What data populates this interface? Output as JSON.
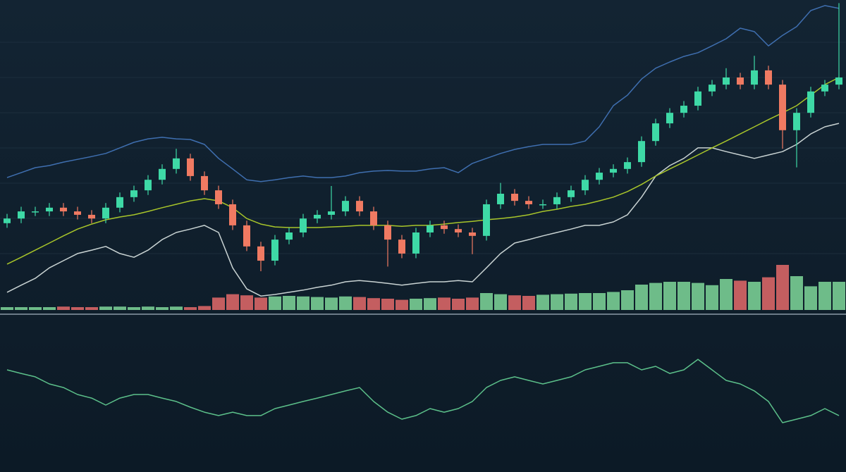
{
  "chart_data": [
    {
      "type": "candlestick",
      "up_color": "#3ed9a6",
      "down_color": "#f07a62",
      "ylim": [
        0,
        100
      ],
      "open": [
        28,
        29.5,
        31.8,
        31.8,
        33,
        31.8,
        30.7,
        29.5,
        33,
        36.4,
        38.6,
        42,
        45.5,
        48.9,
        43.2,
        38.6,
        34.1,
        27.3,
        20.5,
        15.9,
        22.7,
        25,
        29.5,
        30.7,
        31.8,
        35.2,
        31.8,
        27.3,
        22.7,
        18.2,
        25,
        27.3,
        26.1,
        25,
        23.9,
        34.1,
        37.5,
        35.2,
        34.1,
        34.1,
        36.4,
        38.6,
        42,
        44.3,
        45.5,
        47.7,
        54.5,
        60.2,
        63.6,
        65.9,
        70.5,
        72.7,
        75,
        72.7,
        77.3,
        72.7,
        58,
        63.6,
        70.5,
        72.7
      ],
      "high": [
        31,
        33.3,
        33.3,
        34.5,
        34.5,
        33.3,
        32.2,
        34.5,
        37.9,
        40.1,
        43.5,
        47,
        52,
        50.4,
        44.7,
        40.1,
        35.6,
        28.8,
        22,
        24.2,
        26.5,
        31,
        32.2,
        40,
        36.7,
        36.7,
        33.3,
        28.8,
        24.2,
        26.5,
        28.8,
        28.8,
        27.6,
        26.5,
        35.6,
        41,
        39,
        36.7,
        35.6,
        37.9,
        40.1,
        43.5,
        45.8,
        47,
        49.2,
        56,
        61.7,
        65.1,
        67.4,
        72,
        74.2,
        78,
        76.5,
        82,
        78.8,
        74.2,
        65.1,
        72,
        74.2,
        99
      ],
      "low": [
        26.5,
        28,
        30.3,
        30.3,
        30.3,
        29.2,
        28,
        28,
        31.5,
        34.9,
        37.1,
        40.5,
        44,
        41.7,
        37.1,
        32.6,
        25.8,
        19,
        12.5,
        14.4,
        21.2,
        23.5,
        28,
        29.2,
        30.3,
        30.3,
        25.8,
        14,
        16.7,
        16.7,
        23.5,
        24.6,
        23.5,
        18,
        22.4,
        32.6,
        33.7,
        32.6,
        32.6,
        32.6,
        34.9,
        37.1,
        40.5,
        42.8,
        44,
        46.2,
        53,
        58.7,
        62.1,
        64.4,
        69,
        71.2,
        71.2,
        71.2,
        71.2,
        52,
        46,
        62.1,
        69,
        71.2
      ],
      "close": [
        29.5,
        31.8,
        31.8,
        33,
        31.8,
        30.7,
        29.5,
        33,
        36.4,
        38.6,
        42,
        45.5,
        48.9,
        43.2,
        38.6,
        34.1,
        27.3,
        20.5,
        15.9,
        22.7,
        25,
        29.5,
        30.7,
        31.8,
        35.2,
        31.8,
        27.3,
        22.7,
        18.2,
        25,
        27.3,
        26.1,
        25,
        23.9,
        34.1,
        37.5,
        35.2,
        34.1,
        34.1,
        36.4,
        38.6,
        42,
        44.3,
        45.5,
        47.7,
        54.5,
        60.2,
        63.6,
        65.9,
        70.5,
        72.7,
        75,
        72.7,
        77.3,
        72.7,
        58,
        63.6,
        70.5,
        72.7,
        75
      ],
      "lines": [
        {
          "color": "#3f6fb0",
          "values": [
            42.7,
            44.3,
            45.9,
            46.6,
            47.7,
            48.6,
            49.5,
            50.5,
            52.3,
            54.1,
            55.2,
            55.7,
            55.2,
            55,
            53.4,
            48.9,
            45.5,
            42,
            41.4,
            42,
            42.7,
            43.2,
            42.7,
            42.7,
            43.2,
            44.3,
            44.8,
            45,
            44.8,
            44.8,
            45.5,
            45.9,
            44.3,
            47.3,
            48.9,
            50.5,
            51.8,
            52.7,
            53.4,
            53.4,
            53.4,
            54.5,
            59.1,
            65.9,
            69.3,
            74.5,
            78,
            80,
            81.8,
            83,
            85.2,
            87.5,
            90.9,
            89.8,
            85.2,
            88.6,
            91.4,
            96.6,
            98.2,
            97.3
          ]
        },
        {
          "color": "#c9d3d3",
          "values": [
            5.7,
            8,
            10.2,
            13.6,
            15.9,
            18.2,
            19.3,
            20.5,
            18.2,
            17,
            19.3,
            22.7,
            25,
            26.1,
            27.3,
            25,
            13.6,
            6.8,
            4.5,
            5,
            5.7,
            6.4,
            7.3,
            8,
            9.1,
            9.5,
            9.1,
            8.6,
            8,
            8.6,
            9.1,
            9.1,
            9.5,
            9.1,
            13.6,
            18.2,
            21.6,
            22.7,
            23.9,
            25,
            26.1,
            27.3,
            27.3,
            28.4,
            30.7,
            36.4,
            43.2,
            46.6,
            48.9,
            52.3,
            52.3,
            51.1,
            50,
            48.9,
            50,
            51.1,
            53.4,
            56.8,
            59.1,
            60.2
          ]
        },
        {
          "color": "#a8c52a",
          "values": [
            14.8,
            17,
            19.3,
            21.6,
            23.9,
            26.1,
            27.7,
            29.1,
            30,
            30.7,
            31.8,
            33,
            34.1,
            35.2,
            35.9,
            35.2,
            33,
            29.5,
            27.7,
            26.8,
            26.6,
            26.6,
            26.6,
            26.8,
            27,
            27.3,
            27.3,
            27.3,
            27,
            27.3,
            27.3,
            27.7,
            28.2,
            28.6,
            29.1,
            29.5,
            30,
            30.7,
            31.8,
            32.5,
            33.4,
            34.1,
            35.2,
            36.4,
            38.2,
            40.5,
            43.2,
            45.5,
            47.7,
            50,
            52.3,
            54.5,
            56.8,
            59.1,
            61.4,
            63.6,
            65.9,
            69.3,
            72.7,
            75
          ]
        }
      ],
      "volume": {
        "up_color": "#7fd89a",
        "down_color": "#e46a6a",
        "ylim": [
          0,
          100
        ],
        "values": [
          5,
          5,
          5,
          5,
          6,
          5,
          5,
          6,
          6,
          5,
          6,
          5,
          6,
          5,
          7,
          22,
          28,
          26,
          22,
          24,
          25,
          24,
          23,
          22,
          24,
          23,
          21,
          20,
          18,
          20,
          21,
          22,
          20,
          22,
          30,
          28,
          26,
          25,
          27,
          28,
          29,
          30,
          30,
          32,
          35,
          45,
          48,
          50,
          50,
          48,
          44,
          55,
          52,
          50,
          58,
          80,
          60,
          42,
          50,
          50
        ]
      }
    },
    {
      "type": "line",
      "ylim": [
        0,
        100
      ],
      "series": [
        {
          "color": "#5cc08a",
          "values": [
            65.9,
            63.6,
            61.4,
            56.8,
            54.5,
            50,
            47.7,
            43.2,
            47.7,
            50,
            50,
            47.7,
            45.5,
            41.8,
            38.6,
            36.4,
            38.6,
            36.4,
            36.4,
            40.9,
            43.2,
            45.5,
            47.7,
            50,
            52.3,
            54.5,
            45.5,
            38.6,
            34.1,
            36.4,
            40.9,
            38.6,
            40.9,
            45.5,
            54.5,
            59.1,
            61.4,
            59.1,
            56.8,
            59.1,
            61.4,
            65.9,
            68.2,
            70.5,
            70.5,
            65.9,
            68.2,
            63.6,
            65.9,
            72.7,
            65.9,
            59.1,
            56.8,
            52.3,
            45.5,
            31.8,
            34.1,
            36.4,
            40.9,
            36.4
          ]
        }
      ]
    }
  ]
}
